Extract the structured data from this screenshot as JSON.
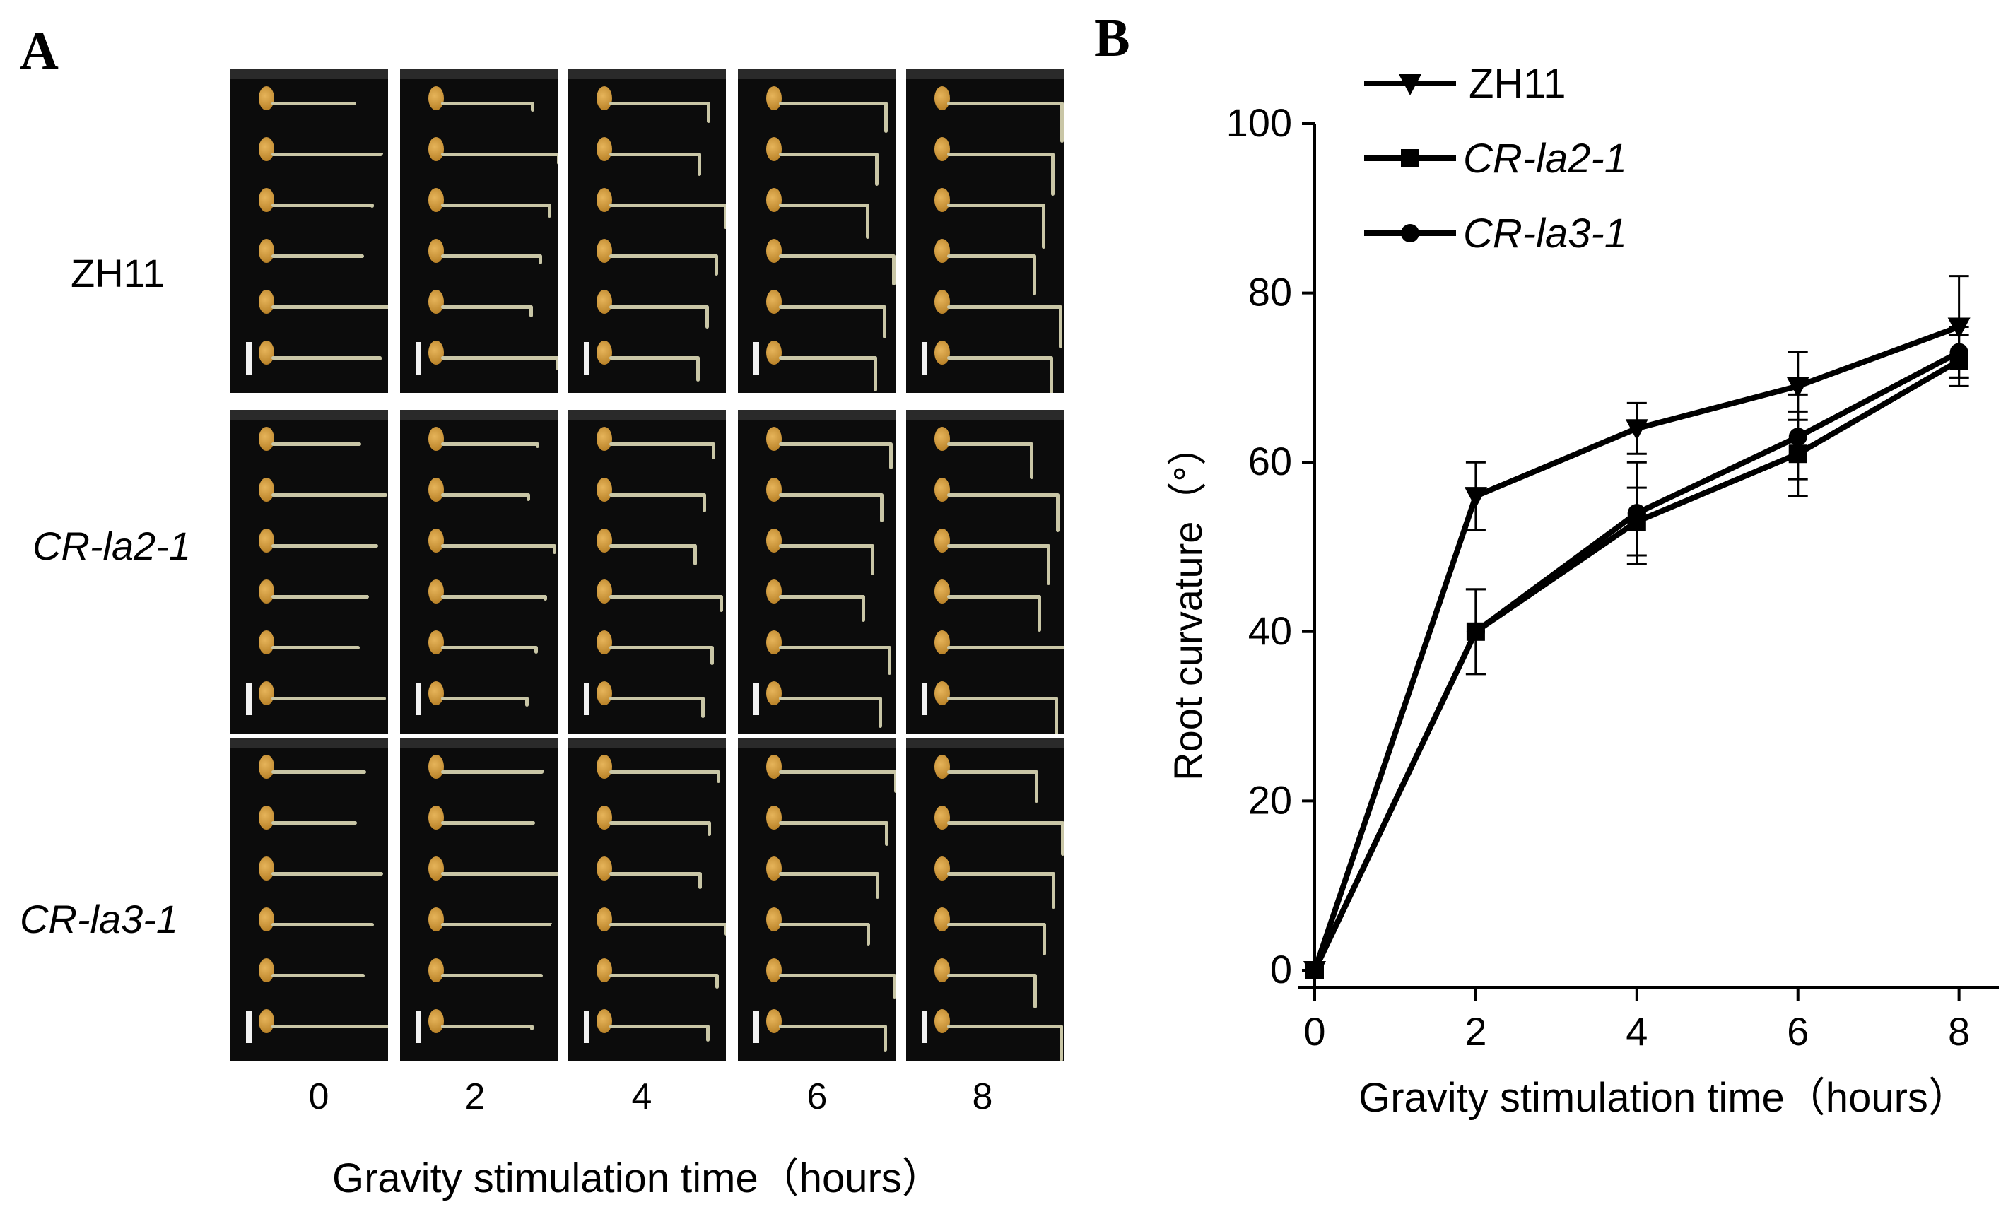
{
  "panel_a": {
    "letter": "A",
    "rows": [
      {
        "label": "ZH11",
        "italic": false
      },
      {
        "label": "CR-la2-1",
        "italic": true
      },
      {
        "label": "CR-la3-1",
        "italic": true
      }
    ],
    "columns": [
      "0",
      "2",
      "4",
      "6",
      "8"
    ],
    "xlabel": "Gravity  stimulation  time（hours）"
  },
  "panel_b": {
    "letter": "B"
  },
  "chart_data": {
    "type": "line",
    "x": [
      0,
      2,
      4,
      6,
      8
    ],
    "xlabel": "Gravity  stimulation  time（hours）",
    "ylabel": "Root curvature（°）",
    "xlim": [
      0,
      8.6
    ],
    "ylim": [
      0,
      100
    ],
    "xticks": [
      "0",
      "2",
      "4",
      "6",
      "8"
    ],
    "yticks": [
      "0",
      "20",
      "40",
      "60",
      "80",
      "100"
    ],
    "legend_position": "top",
    "series": [
      {
        "name": "ZH11",
        "marker": "triangle-down",
        "italic": false,
        "values": [
          0,
          56,
          64,
          69,
          76
        ],
        "errors": [
          0,
          4,
          3,
          4,
          6
        ]
      },
      {
        "name": "CR-la2-1",
        "marker": "square",
        "italic": true,
        "values": [
          0,
          40,
          53,
          61,
          72
        ],
        "errors": [
          0,
          5,
          4,
          5,
          3
        ]
      },
      {
        "name": "CR-la3-1",
        "marker": "circle",
        "italic": true,
        "values": [
          0,
          40,
          54,
          63,
          73
        ],
        "errors": [
          0,
          5,
          6,
          5,
          3
        ]
      }
    ]
  }
}
